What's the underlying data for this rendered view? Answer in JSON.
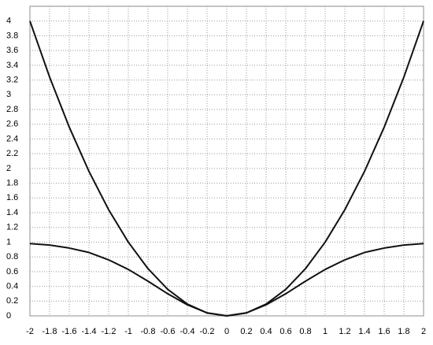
{
  "chart_data": {
    "type": "line",
    "x": [
      -2,
      -1.8,
      -1.6,
      -1.4,
      -1.2,
      -1,
      -0.8,
      -0.6,
      -0.4,
      -0.2,
      0,
      0.2,
      0.4,
      0.6,
      0.8,
      1,
      1.2,
      1.4,
      1.6,
      1.8,
      2
    ],
    "series": [
      {
        "color": "#111111",
        "values": [
          4,
          3.24,
          2.56,
          1.96,
          1.44,
          1,
          0.64,
          0.36,
          0.16,
          0.04,
          0,
          0.04,
          0.16,
          0.36,
          0.64,
          1,
          1.44,
          1.96,
          2.56,
          3.24,
          4
        ]
      },
      {
        "color": "#111111",
        "values": [
          0.98,
          0.96,
          0.92,
          0.86,
          0.76,
          0.63,
          0.47,
          0.3,
          0.15,
          0.04,
          0,
          0.04,
          0.15,
          0.3,
          0.47,
          0.63,
          0.76,
          0.86,
          0.92,
          0.96,
          0.98
        ]
      }
    ],
    "xlim": [
      -2,
      2
    ],
    "xticks": [
      -2,
      -1.8,
      -1.6,
      -1.4,
      -1.2,
      -1,
      -0.8,
      -0.6,
      -0.4,
      -0.2,
      0,
      0.2,
      0.4,
      0.6,
      0.8,
      1,
      1.2,
      1.4,
      1.6,
      1.8,
      2
    ],
    "ylim": [
      0,
      4.2
    ],
    "yticks": [
      0,
      0.2,
      0.4,
      0.6,
      0.8,
      1,
      1.2,
      1.4,
      1.6,
      1.8,
      2,
      2.2,
      2.4,
      2.6,
      2.8,
      3,
      3.2,
      3.4,
      3.6,
      3.8,
      4
    ],
    "grid": true
  }
}
